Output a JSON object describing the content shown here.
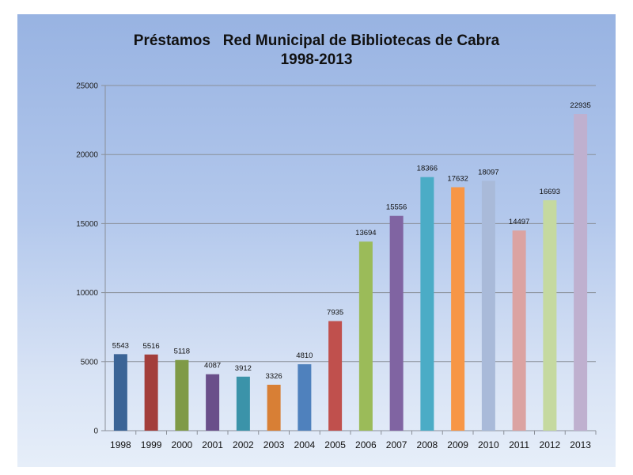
{
  "chart_data": {
    "type": "bar",
    "title": "Préstamos   Red Municipal de Bibliotecas de Cabra",
    "subtitle": "1998-2013",
    "xlabel": "",
    "ylabel": "",
    "ylim": [
      0,
      25000
    ],
    "yticks": [
      0,
      5000,
      10000,
      15000,
      20000,
      25000
    ],
    "grid": true,
    "categories": [
      "1998",
      "1999",
      "2000",
      "2001",
      "2002",
      "2003",
      "2004",
      "2005",
      "2006",
      "2007",
      "2008",
      "2009",
      "2010",
      "2011",
      "2012",
      "2013"
    ],
    "values": [
      5543,
      5516,
      5118,
      4087,
      3912,
      3326,
      4810,
      7935,
      13694,
      15556,
      18366,
      17632,
      18097,
      14497,
      16693,
      22935
    ],
    "colors": [
      "#3b6496",
      "#a33e3b",
      "#7f9a47",
      "#6a4f8a",
      "#3b93a9",
      "#d87f35",
      "#4f81bd",
      "#c0504d",
      "#9bbb59",
      "#8064a2",
      "#4bacc6",
      "#f79646",
      "#a9bad9",
      "#dba3a2",
      "#c5d9a0",
      "#bfb0cf"
    ]
  }
}
